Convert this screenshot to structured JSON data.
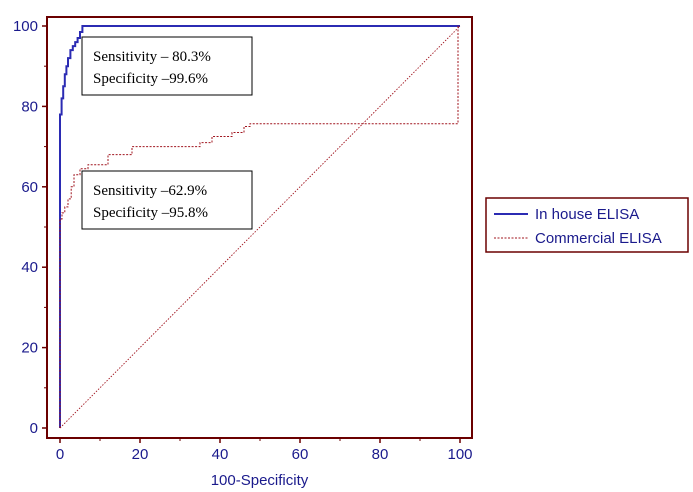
{
  "chart_data": {
    "type": "line",
    "title": "",
    "xlabel": "100-Specificity",
    "ylabel": "",
    "xlim": [
      0,
      100
    ],
    "ylim": [
      0,
      100
    ],
    "x_ticks": [
      0,
      20,
      40,
      60,
      80,
      100
    ],
    "y_ticks": [
      0,
      20,
      40,
      60,
      80,
      100
    ],
    "grid": false,
    "legend_position": "right",
    "series": [
      {
        "name": "In house ELISA",
        "color": "#2b2bb3",
        "style": "solid",
        "x": [
          0,
          0,
          0.4,
          0.4,
          0.8,
          0.8,
          1.2,
          1.2,
          1.6,
          1.6,
          2.0,
          2.0,
          2.6,
          2.6,
          3.2,
          3.2,
          3.8,
          3.8,
          4.4,
          4.4,
          5.0,
          5.0,
          5.6,
          5.6,
          100
        ],
        "y": [
          0,
          78,
          78,
          82,
          82,
          85,
          85,
          88,
          88,
          90,
          90,
          92,
          92,
          94,
          94,
          95,
          95,
          96,
          96,
          97,
          97,
          98.5,
          98.5,
          100,
          100
        ]
      },
      {
        "name": "Commercial ELISA",
        "color": "#a0141e",
        "style": "dashed",
        "x": [
          0,
          0,
          0.5,
          0.5,
          1.2,
          1.2,
          2,
          2,
          2.8,
          2.8,
          3.5,
          3.5,
          5,
          5,
          7,
          7,
          12,
          12,
          18,
          18,
          35,
          35,
          38,
          38,
          43,
          43,
          46,
          46,
          47.5,
          47.5,
          99.5,
          99.5,
          100
        ],
        "y": [
          0,
          52,
          52,
          53.5,
          53.5,
          55,
          55,
          57,
          57,
          60,
          60,
          63,
          63,
          64.5,
          64.5,
          65.5,
          65.5,
          68,
          68,
          70,
          70,
          71,
          71,
          72.5,
          72.5,
          73.5,
          73.5,
          75,
          75,
          75.7,
          75.7,
          100,
          100
        ]
      },
      {
        "name": "",
        "color": "#a0141e",
        "style": "dotted",
        "x": [
          0,
          100
        ],
        "y": [
          0,
          100
        ]
      }
    ],
    "annotations": [
      {
        "lines": [
          "Sensitivity – 80.3%",
          "Specificity –99.6%"
        ]
      },
      {
        "lines": [
          "Sensitivity –62.9%",
          "Specificity –95.8%"
        ]
      }
    ]
  },
  "colors": {
    "frame": "#6b0000",
    "axis_text": "#1a1a8c"
  }
}
